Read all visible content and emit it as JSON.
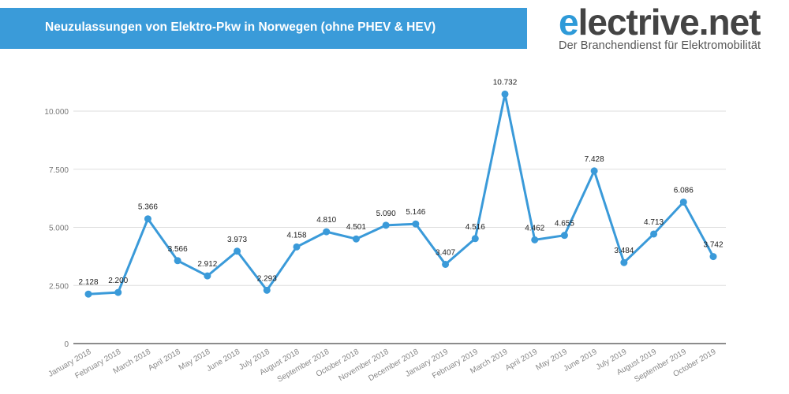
{
  "header": {
    "title": "Neuzulassungen von Elektro-Pkw in Norwegen (ohne PHEV & HEV)"
  },
  "logo": {
    "first_letter": "e",
    "rest": "lectrive.net",
    "tagline": "Der Branchendienst für Elektromobilität",
    "accent": "#2e9ad8"
  },
  "chart_data": {
    "type": "line",
    "title": "Neuzulassungen von Elektro-Pkw in Norwegen (ohne PHEV & HEV)",
    "xlabel": "",
    "ylabel": "",
    "ylim": [
      0,
      10000
    ],
    "yticks": [
      0,
      2500,
      5000,
      7500,
      10000
    ],
    "ytick_labels": [
      "0",
      "2.500",
      "5.000",
      "7.500",
      "10.000"
    ],
    "grid": true,
    "line_color": "#3a9ad9",
    "categories": [
      "January 2018",
      "February 2018",
      "March 2018",
      "April 2018",
      "May 2018",
      "June 2018",
      "July 2018",
      "August 2018",
      "September 2018",
      "October 2018",
      "November 2018",
      "December 2018",
      "January 2019",
      "February 2019",
      "March 2019",
      "April 2019",
      "May 2019",
      "June 2019",
      "July 2019",
      "August 2019",
      "September 2019",
      "October 2019"
    ],
    "values": [
      2128,
      2200,
      5366,
      3566,
      2912,
      3973,
      2293,
      4158,
      4810,
      4501,
      5090,
      5146,
      3407,
      4516,
      10732,
      4462,
      4655,
      7428,
      3484,
      4713,
      6086,
      3742
    ],
    "value_labels": [
      "2.128",
      "2.200",
      "5.366",
      "3.566",
      "2.912",
      "3.973",
      "2.293",
      "4.158",
      "4.810",
      "4.501",
      "5.090",
      "5.146",
      "3.407",
      "4.516",
      "10.732",
      "4.462",
      "4.655",
      "7.428",
      "3.484",
      "4.713",
      "6.086",
      "3.742"
    ]
  }
}
